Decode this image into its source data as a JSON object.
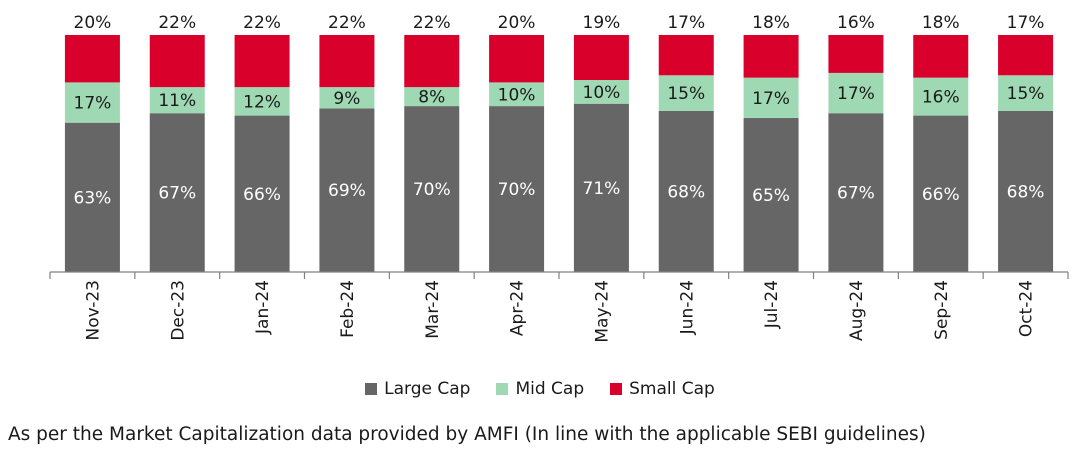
{
  "chart_data": {
    "type": "bar",
    "stacked": true,
    "percent_stacked": true,
    "categories": [
      "Nov-23",
      "Dec-23",
      "Jan-24",
      "Feb-24",
      "Mar-24",
      "Apr-24",
      "May-24",
      "Jun-24",
      "Jul-24",
      "Aug-24",
      "Sep-24",
      "Oct-24"
    ],
    "series": [
      {
        "name": "Large Cap",
        "color": "#666666",
        "label_color": "#ffffff",
        "values": [
          63,
          67,
          66,
          69,
          70,
          70,
          71,
          68,
          65,
          67,
          66,
          68
        ]
      },
      {
        "name": "Mid Cap",
        "color": "#9fd9b4",
        "label_color": "#1a1a1a",
        "values": [
          17,
          11,
          12,
          9,
          8,
          10,
          10,
          15,
          17,
          17,
          16,
          15
        ]
      },
      {
        "name": "Small Cap",
        "color": "#d9002b",
        "label_color": "#1a1a1a",
        "values": [
          20,
          22,
          22,
          22,
          22,
          20,
          19,
          17,
          18,
          16,
          18,
          17
        ]
      }
    ],
    "value_suffix": "%",
    "legend_position": "bottom",
    "grid": false
  },
  "footnote": "As per the Market Capitalization data provided by AMFI (In line with the applicable SEBI guidelines)"
}
